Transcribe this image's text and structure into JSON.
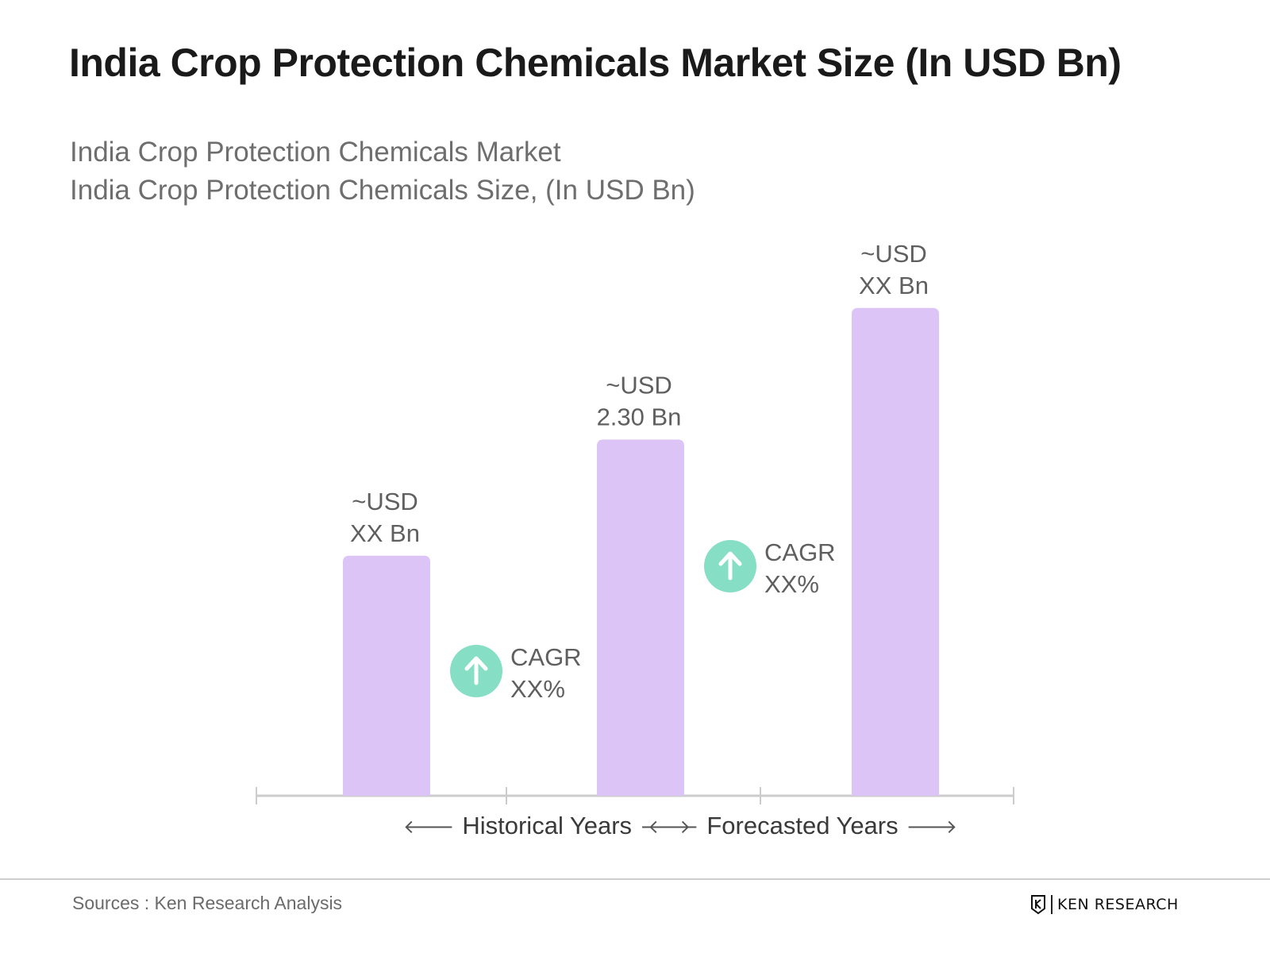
{
  "title": "India Crop Protection Chemicals Market Size (In USD Bn)",
  "subtitle_line1": "India Crop Protection Chemicals Market",
  "subtitle_line2": "India Crop Protection Chemicals Size, (In USD Bn)",
  "chart_data": {
    "type": "bar",
    "title": "India Crop Protection Chemicals Market Size (In USD Bn)",
    "subtitle": "India Crop Protection Chemicals Market / India Crop Protection Chemicals Size, (In USD Bn)",
    "categories": [
      "",
      "",
      ""
    ],
    "values": [
      1.55,
      2.3,
      3.15
    ],
    "value_labels": [
      [
        "~USD",
        "XX Bn"
      ],
      [
        "~USD",
        "2.30 Bn"
      ],
      [
        "~USD",
        "XX Bn"
      ]
    ],
    "bar_color": "#dcc4f7",
    "ylim": [
      0,
      3.6
    ],
    "grid": false,
    "period_labels": [
      "Historical Years",
      "Forecasted Years"
    ],
    "cagr_annotations": [
      {
        "label": "CAGR",
        "value": "XX%",
        "between": [
          0,
          1
        ]
      },
      {
        "label": "CAGR",
        "value": "XX%",
        "between": [
          1,
          2
        ]
      }
    ],
    "cagr_color": "#86dfc4"
  },
  "source": "Sources : Ken Research Analysis",
  "brand": "KEN RESEARCH"
}
